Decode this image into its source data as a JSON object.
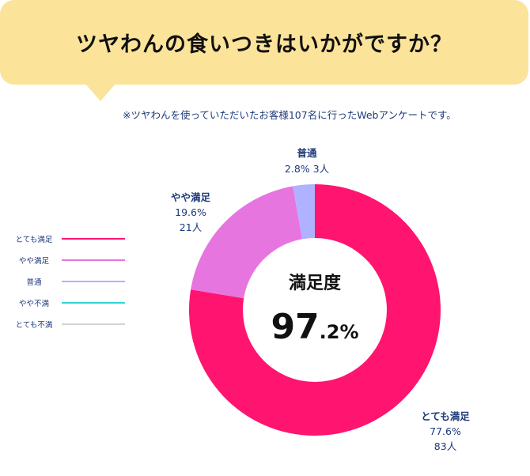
{
  "header": {
    "title": "ツヤわんの食いつきはいかがですか？"
  },
  "note": "※ツヤわんを使っていただいたお客様107名に行ったWebアンケートです。",
  "center": {
    "label": "満足度",
    "value_main": "97",
    "value_dec": ".2",
    "value_unit": "%"
  },
  "colors": {
    "banner": "#fbe39a",
    "text_navy": "#1d3a7a"
  },
  "chart_data": {
    "type": "pie",
    "categories": [
      "とても満足",
      "やや満足",
      "普通",
      "やや不満",
      "とても不満"
    ],
    "values": [
      77.6,
      19.6,
      2.8,
      0,
      0
    ],
    "counts": [
      83,
      21,
      3,
      0,
      0
    ],
    "colors": [
      "#ff156f",
      "#e775e0",
      "#b0b2ff",
      "#33d6d6",
      "#d3d3d3"
    ],
    "value_labels": [
      "77.6%",
      "19.6%",
      "2.8%",
      "",
      ""
    ],
    "count_labels": [
      "83人",
      "21人",
      "3人",
      "",
      ""
    ],
    "donut": true,
    "legend_position": "left"
  }
}
